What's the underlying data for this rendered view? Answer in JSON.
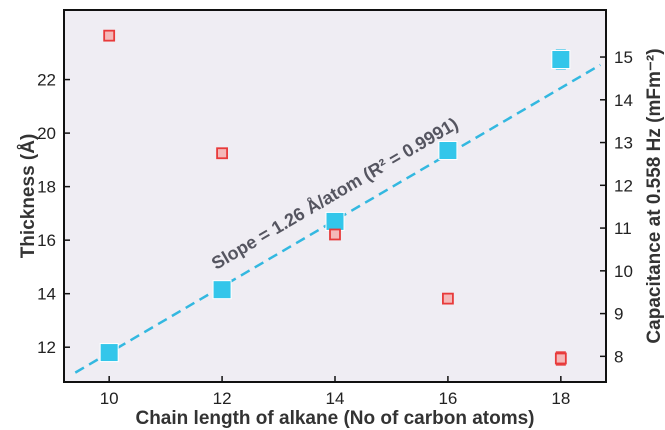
{
  "chart_data": {
    "type": "scatter",
    "title": "",
    "xlabel": "Chain length of alkane (No of carbon atoms)",
    "ylabel": "Thickness (Å)",
    "y2label": "Capacitance at 0.558 Hz (mFm⁻²)",
    "xlim": [
      9.2,
      18.8
    ],
    "ylim": [
      10.7,
      24.6
    ],
    "y2lim": [
      7.4,
      16.1
    ],
    "xticks": [
      10,
      12,
      14,
      16,
      18
    ],
    "yticks": [
      12,
      14,
      16,
      18,
      20,
      22
    ],
    "y2ticks": [
      8,
      9,
      10,
      11,
      12,
      13,
      14,
      15
    ],
    "grid": false,
    "background": "#efedf3",
    "series": [
      {
        "axis": "left",
        "color": "#33c6ea",
        "marker": "square-large",
        "x": [
          10,
          12,
          14,
          16,
          18
        ],
        "y": [
          11.8,
          14.15,
          16.7,
          19.35,
          22.75
        ],
        "error": [
          0.1,
          0.1,
          0.15,
          0.1,
          0.35
        ]
      },
      {
        "axis": "right",
        "color": "#e83a3a",
        "marker": "square-open",
        "x": [
          10,
          12,
          14,
          16,
          18
        ],
        "y": [
          15.5,
          12.75,
          10.85,
          9.35,
          7.95
        ],
        "error": [
          0.05,
          0.05,
          0.05,
          0.05,
          0.15
        ]
      }
    ],
    "fit_line": {
      "axis": "left",
      "color": "#33b8e0",
      "style": "dashed",
      "x": [
        9.4,
        18.7
      ],
      "y": [
        11.05,
        22.55
      ],
      "label": "Slope = 1.26 Å/atom (R² = 0.9991)"
    }
  }
}
